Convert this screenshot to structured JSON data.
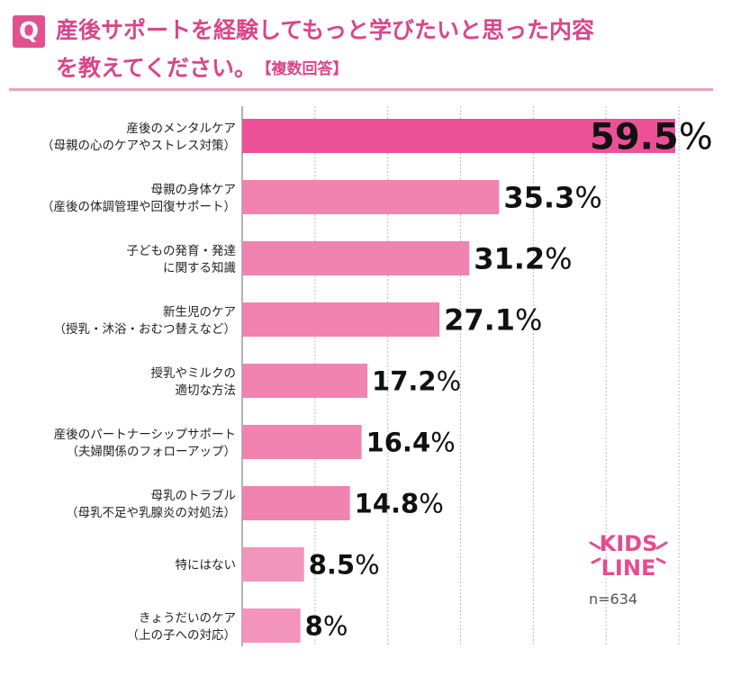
{
  "header": {
    "badge": "Q",
    "title_line1": "産後サポートを経験してもっと学びたいと思った内容",
    "title_line2": "を教えてください。",
    "title_note": "【複数回答】"
  },
  "chart_data": {
    "type": "bar",
    "orientation": "horizontal",
    "title": "産後サポートを経験してもっと学びたいと思った内容を教えてください。【複数回答】",
    "categories": [
      {
        "line1": "産後のメンタルケア",
        "line2": "（母親の心のケアやストレス対策）"
      },
      {
        "line1": "母親の身体ケア",
        "line2": "（産後の体調管理や回復サポート）"
      },
      {
        "line1": "子どもの発育・発達",
        "line2": "に関する知識"
      },
      {
        "line1": "新生児のケア",
        "line2": "（授乳・沐浴・おむつ替えなど）"
      },
      {
        "line1": "授乳やミルクの",
        "line2": "適切な方法"
      },
      {
        "line1": "産後のパートナーシップサポート",
        "line2": "（夫婦関係のフォローアップ）"
      },
      {
        "line1": "母乳のトラブル",
        "line2": "（母乳不足や乳腺炎の対処法）"
      },
      {
        "line1": "特にはない",
        "line2": ""
      },
      {
        "line1": "きょうだいのケア",
        "line2": "（上の子への対応）"
      }
    ],
    "values": [
      59.5,
      35.3,
      31.2,
      27.1,
      17.2,
      16.4,
      14.8,
      8.5,
      8.0
    ],
    "value_labels": [
      "59.5",
      "35.3",
      "31.2",
      "27.1",
      "17.2",
      "16.4",
      "14.8",
      "8.5",
      "8"
    ],
    "unit": "%",
    "xlim": [
      0,
      60
    ],
    "grid": true,
    "colors": {
      "highlight": "#ec5197",
      "bar": "#f083b0",
      "bar_light": "#f294bc",
      "grid": "#bbbbbb"
    },
    "sample": "n=634"
  },
  "brand": {
    "line1": "KIDS",
    "line2": "LINE",
    "color": "#e64b8e"
  }
}
